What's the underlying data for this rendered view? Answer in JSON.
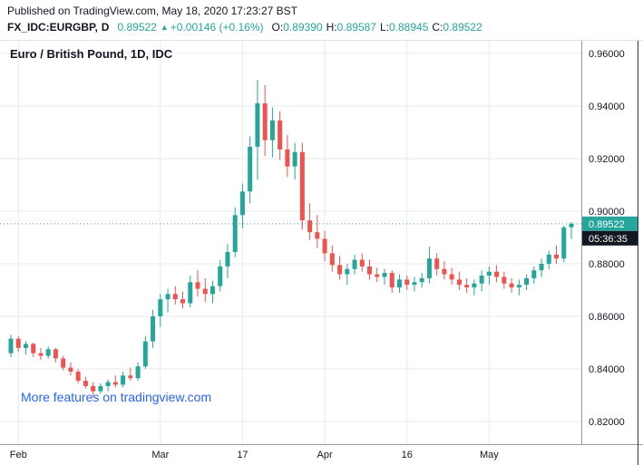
{
  "page": {
    "published_line": "Published on TradingView.com, May 18, 2020 17:23:27 BST"
  },
  "header": {
    "symbol_text": "FX_IDC:EURGBP,",
    "interval": "D",
    "price": "0.89522",
    "arrow": "▲",
    "change_text": "+0.00146 (+0.16%)",
    "ohlc": [
      {
        "label": "O:",
        "value": "0.89390"
      },
      {
        "label": "H:",
        "value": "0.89587"
      },
      {
        "label": "L:",
        "value": "0.88945"
      },
      {
        "label": "C:",
        "value": "0.89522"
      }
    ]
  },
  "chart": {
    "title": "Euro / British Pound, 1D, IDC",
    "watermark": "More features on tradingview.com",
    "price_badge": "0.89522",
    "countdown_badge": "05:36:35",
    "colors": {
      "up": "#26a69a",
      "down": "#ef5350",
      "text": "#131722",
      "axis_text": "#131722",
      "grid": "#e8eaee",
      "axis_border": "#9598a1",
      "top_border": "#e0e3eb",
      "right_edge": "#363a45",
      "badge_text": "#ffffff",
      "countdown_bg": "#131722",
      "watermark_blue": "#2962ff"
    }
  },
  "chart_data": {
    "type": "candlestick",
    "title": "Euro / British Pound, 1D, IDC",
    "symbol": "FX_IDC:EURGBP",
    "interval": "1D",
    "ylim": [
      0.8114,
      0.9648
    ],
    "last_price": 0.89522,
    "y_ticks": [
      {
        "label": "0.96000",
        "value": 0.96
      },
      {
        "label": "0.94000",
        "value": 0.94
      },
      {
        "label": "0.92000",
        "value": 0.92
      },
      {
        "label": "0.90000",
        "value": 0.9
      },
      {
        "label": "0.88000",
        "value": 0.88
      },
      {
        "label": "0.86000",
        "value": 0.86
      },
      {
        "label": "0.84000",
        "value": 0.84
      },
      {
        "label": "0.82000",
        "value": 0.82
      }
    ],
    "x_ticks": [
      {
        "label": "Feb",
        "index": 1
      },
      {
        "label": "Mar",
        "index": 20
      },
      {
        "label": "17",
        "index": 31
      },
      {
        "label": "Apr",
        "index": 42
      },
      {
        "label": "16",
        "index": 53
      },
      {
        "label": "May",
        "index": 64
      }
    ],
    "dates": [
      "2020-02-03",
      "2020-02-04",
      "2020-02-05",
      "2020-02-06",
      "2020-02-07",
      "2020-02-10",
      "2020-02-11",
      "2020-02-12",
      "2020-02-13",
      "2020-02-14",
      "2020-02-17",
      "2020-02-18",
      "2020-02-19",
      "2020-02-20",
      "2020-02-21",
      "2020-02-24",
      "2020-02-25",
      "2020-02-26",
      "2020-02-27",
      "2020-02-28",
      "2020-03-02",
      "2020-03-03",
      "2020-03-04",
      "2020-03-05",
      "2020-03-06",
      "2020-03-09",
      "2020-03-10",
      "2020-03-11",
      "2020-03-12",
      "2020-03-13",
      "2020-03-16",
      "2020-03-17",
      "2020-03-18",
      "2020-03-19",
      "2020-03-20",
      "2020-03-23",
      "2020-03-24",
      "2020-03-25",
      "2020-03-26",
      "2020-03-27",
      "2020-03-30",
      "2020-03-31",
      "2020-04-01",
      "2020-04-02",
      "2020-04-03",
      "2020-04-06",
      "2020-04-07",
      "2020-04-08",
      "2020-04-09",
      "2020-04-10",
      "2020-04-13",
      "2020-04-14",
      "2020-04-15",
      "2020-04-16",
      "2020-04-17",
      "2020-04-20",
      "2020-04-21",
      "2020-04-22",
      "2020-04-23",
      "2020-04-24",
      "2020-04-27",
      "2020-04-28",
      "2020-04-29",
      "2020-04-30",
      "2020-05-01",
      "2020-05-04",
      "2020-05-05",
      "2020-05-06",
      "2020-05-07",
      "2020-05-08",
      "2020-05-11",
      "2020-05-12",
      "2020-05-13",
      "2020-05-14",
      "2020-05-15",
      "2020-05-18"
    ],
    "open": [
      0.846,
      0.8515,
      0.848,
      0.8495,
      0.846,
      0.845,
      0.8475,
      0.844,
      0.8405,
      0.839,
      0.8355,
      0.8335,
      0.8315,
      0.8335,
      0.835,
      0.834,
      0.8375,
      0.8365,
      0.841,
      0.8505,
      0.86,
      0.8665,
      0.8685,
      0.8665,
      0.865,
      0.873,
      0.8705,
      0.8685,
      0.8715,
      0.879,
      0.8845,
      0.8985,
      0.9075,
      0.9245,
      0.941,
      0.927,
      0.9345,
      0.9235,
      0.917,
      0.9225,
      0.8965,
      0.892,
      0.8895,
      0.884,
      0.8795,
      0.876,
      0.878,
      0.8815,
      0.879,
      0.876,
      0.875,
      0.8765,
      0.871,
      0.874,
      0.872,
      0.873,
      0.8745,
      0.882,
      0.878,
      0.876,
      0.874,
      0.872,
      0.871,
      0.8725,
      0.8755,
      0.877,
      0.875,
      0.8725,
      0.871,
      0.872,
      0.8745,
      0.8775,
      0.88,
      0.8835,
      0.882,
      0.8939
    ],
    "high": [
      0.853,
      0.8525,
      0.8505,
      0.85,
      0.848,
      0.8485,
      0.848,
      0.845,
      0.8425,
      0.84,
      0.837,
      0.835,
      0.8345,
      0.836,
      0.8375,
      0.839,
      0.8405,
      0.8425,
      0.8525,
      0.8625,
      0.8685,
      0.8705,
      0.8715,
      0.8695,
      0.8755,
      0.8775,
      0.8745,
      0.8735,
      0.8815,
      0.8875,
      0.9015,
      0.9105,
      0.9285,
      0.95,
      0.948,
      0.9395,
      0.938,
      0.929,
      0.926,
      0.926,
      0.903,
      0.8985,
      0.8925,
      0.887,
      0.883,
      0.88,
      0.8835,
      0.884,
      0.8815,
      0.8785,
      0.878,
      0.8775,
      0.876,
      0.8755,
      0.875,
      0.8765,
      0.8865,
      0.884,
      0.881,
      0.8785,
      0.877,
      0.8745,
      0.874,
      0.8775,
      0.879,
      0.8795,
      0.877,
      0.8745,
      0.874,
      0.876,
      0.879,
      0.882,
      0.885,
      0.887,
      0.8945,
      0.89587
    ],
    "low": [
      0.8445,
      0.8465,
      0.8455,
      0.8445,
      0.8435,
      0.844,
      0.8425,
      0.8395,
      0.8375,
      0.8345,
      0.8325,
      0.8295,
      0.8305,
      0.8315,
      0.833,
      0.833,
      0.8355,
      0.8355,
      0.84,
      0.848,
      0.856,
      0.8615,
      0.8645,
      0.863,
      0.8635,
      0.8675,
      0.8655,
      0.865,
      0.8695,
      0.8745,
      0.8825,
      0.8935,
      0.903,
      0.912,
      0.921,
      0.9205,
      0.9195,
      0.913,
      0.912,
      0.893,
      0.889,
      0.886,
      0.881,
      0.877,
      0.874,
      0.872,
      0.876,
      0.877,
      0.874,
      0.873,
      0.872,
      0.869,
      0.869,
      0.87,
      0.8695,
      0.871,
      0.8725,
      0.8755,
      0.874,
      0.872,
      0.87,
      0.869,
      0.868,
      0.8695,
      0.872,
      0.873,
      0.8705,
      0.869,
      0.868,
      0.87,
      0.8725,
      0.875,
      0.878,
      0.88,
      0.8805,
      0.88945
    ],
    "close": [
      0.8515,
      0.848,
      0.8495,
      0.846,
      0.845,
      0.8475,
      0.844,
      0.8405,
      0.839,
      0.8355,
      0.8335,
      0.8315,
      0.8335,
      0.835,
      0.834,
      0.8375,
      0.8365,
      0.841,
      0.8505,
      0.86,
      0.8665,
      0.8685,
      0.8665,
      0.865,
      0.873,
      0.8705,
      0.8685,
      0.8715,
      0.879,
      0.8845,
      0.8985,
      0.9075,
      0.9245,
      0.941,
      0.927,
      0.9345,
      0.9235,
      0.917,
      0.9225,
      0.8965,
      0.892,
      0.8895,
      0.884,
      0.8795,
      0.876,
      0.878,
      0.8815,
      0.879,
      0.876,
      0.875,
      0.8765,
      0.871,
      0.874,
      0.872,
      0.873,
      0.8745,
      0.882,
      0.878,
      0.876,
      0.874,
      0.872,
      0.871,
      0.8725,
      0.8755,
      0.877,
      0.875,
      0.8725,
      0.871,
      0.872,
      0.8745,
      0.8775,
      0.88,
      0.8835,
      0.882,
      0.8938,
      0.89522
    ]
  }
}
